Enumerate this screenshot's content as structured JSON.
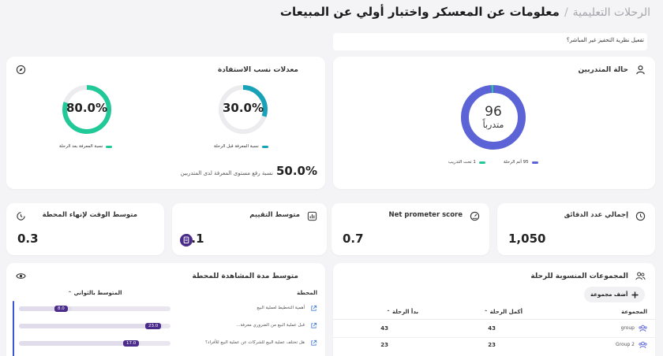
{
  "breadcrumb": {
    "parent": "الرحلات التعليمية",
    "separator": "/",
    "title": "معلومات عن المعسكر واختبار أولي عن المبيعات"
  },
  "toggle": {
    "label": "تفعيل نظرية التحفيز غير المباشر؟"
  },
  "trainees_card": {
    "title": "حالة المتدربين",
    "center_value": "96",
    "center_label": "متدرباً",
    "completed_count": 95,
    "in_training_count": 1,
    "legend_completed": "95 أتم الرحلة",
    "legend_in_training": "1 تحت التدريب",
    "colors": {
      "completed": "#5b63d6",
      "in_training": "#20c997",
      "track": "#e9e9ee"
    }
  },
  "benefit_card": {
    "title": "معدلات نسب الاستفادة",
    "before": {
      "value": "30.0%",
      "fraction": 0.3,
      "label": "نسبة المعرفة قبل الرحلة"
    },
    "after": {
      "value": "80.0%",
      "fraction": 0.8,
      "label": "نسبة المعرفة بعد الرحلة"
    },
    "improvement_value": "50.0%",
    "improvement_label": "نسبة رفع مستوى المعرفة لدى المتدربين",
    "colors": {
      "before": "#17a2b8",
      "after": "#20c997",
      "track": "#ececef"
    }
  },
  "stats": {
    "total_minutes": {
      "title": "إجمالي عدد الدقائق",
      "value": "1,050"
    },
    "nps": {
      "title": "Net prometer score",
      "value": "0.7"
    },
    "rating": {
      "title": "متوسط التقييم",
      "value": "9.1"
    },
    "avg_time": {
      "title": "متوسط الوقت لإنهاء المحطة",
      "value": "0.3"
    }
  },
  "groups_card": {
    "title": "المجموعات المنسوبة للرحلة",
    "add_button": "أضف مجموعة",
    "columns": {
      "group": "المجموعة",
      "completed": "أكمل الرحلة",
      "started": "بدأ الرحلة"
    },
    "rows": [
      {
        "name": "group",
        "completed": "43",
        "started": "43"
      },
      {
        "name": "Group 2",
        "completed": "23",
        "started": "23"
      }
    ]
  },
  "watch_card": {
    "title": "متوسط مدة المشاهدة للمحطة",
    "col_station": "المحطة",
    "col_avg": "المتوسط بالثواني",
    "rows": [
      {
        "station": "أهمية التخطيط لعملية البيع",
        "value": "8.0",
        "fraction": 0.35
      },
      {
        "station": "قبل عملية البيع من الضروري معرفة...",
        "value": "23.0",
        "fraction": 0.95
      },
      {
        "station": "هل تختلف عملية البيع للشركات عن عملية البيع للأفراد؟",
        "value": "17.0",
        "fraction": 0.8
      }
    ]
  }
}
